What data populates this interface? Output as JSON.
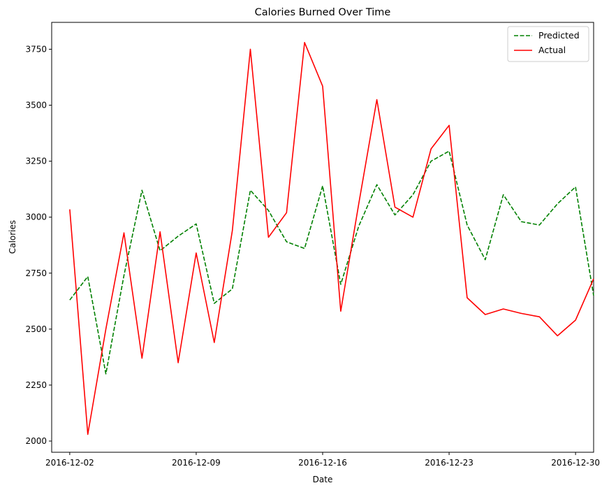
{
  "chart_data": {
    "type": "line",
    "title": "Calories Burned Over Time",
    "xlabel": "Date",
    "ylabel": "Calories",
    "x_ticks": [
      "2016-12-02",
      "2016-12-09",
      "2016-12-16",
      "2016-12-23",
      "2016-12-30"
    ],
    "y_ticks": [
      2000,
      2250,
      2500,
      2750,
      3000,
      3250,
      3500,
      3750
    ],
    "xlim": [
      "2016-12-01",
      "2016-12-31"
    ],
    "ylim": [
      1950,
      3870
    ],
    "grid": false,
    "legend_position": "top-right",
    "dates": [
      "2016-12-02",
      "2016-12-03",
      "2016-12-04",
      "2016-12-05",
      "2016-12-06",
      "2016-12-07",
      "2016-12-08",
      "2016-12-09",
      "2016-12-10",
      "2016-12-11",
      "2016-12-12",
      "2016-12-13",
      "2016-12-14",
      "2016-12-15",
      "2016-12-16",
      "2016-12-17",
      "2016-12-18",
      "2016-12-19",
      "2016-12-20",
      "2016-12-21",
      "2016-12-22",
      "2016-12-23",
      "2016-12-24",
      "2016-12-25",
      "2016-12-26",
      "2016-12-27",
      "2016-12-28",
      "2016-12-29",
      "2016-12-30",
      "2016-12-31"
    ],
    "series": [
      {
        "name": "Predicted",
        "color": "#008000",
        "style": "dashed",
        "values": [
          2630,
          2735,
          2300,
          2740,
          3120,
          2850,
          2915,
          2970,
          2615,
          2680,
          3120,
          3030,
          2890,
          2860,
          3140,
          2700,
          2960,
          3145,
          3010,
          3100,
          3250,
          3295,
          2965,
          2810,
          3100,
          2980,
          2965,
          3060,
          3135,
          2650
        ]
      },
      {
        "name": "Actual",
        "color": "#ff0000",
        "style": "solid",
        "values": [
          3035,
          2030,
          2500,
          2930,
          2370,
          2935,
          2350,
          2840,
          2440,
          2940,
          3750,
          2910,
          3020,
          3780,
          3585,
          2580,
          3060,
          3525,
          3045,
          3000,
          3305,
          3410,
          2640,
          2565,
          2590,
          2570,
          2555,
          2470,
          2540,
          2725
        ]
      }
    ]
  }
}
